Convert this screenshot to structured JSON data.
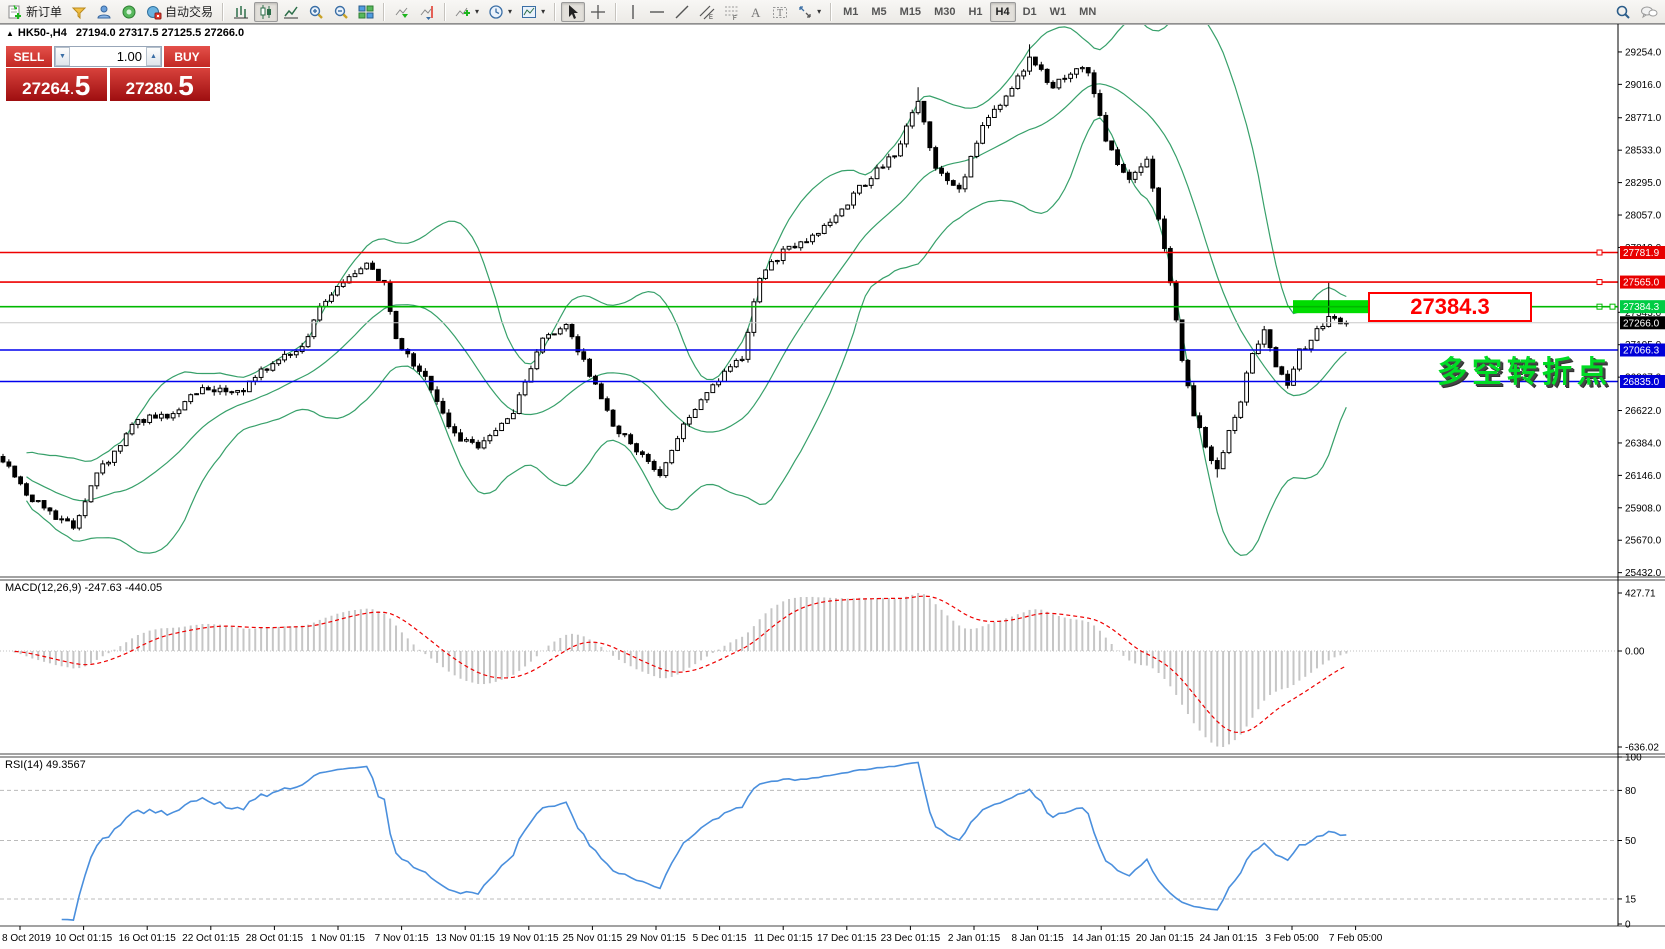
{
  "toolbar": {
    "new_order": "新订单",
    "autotrading": "自动交易",
    "timeframes": [
      "M1",
      "M5",
      "M15",
      "M30",
      "H1",
      "H4",
      "D1",
      "W1",
      "MN"
    ],
    "active_timeframe": "H4"
  },
  "chart_header": {
    "collapse_marker": "▲",
    "symbol_period": "HK50-,H4",
    "ohlc": "27194.0 27317.5 27125.5 27266.0"
  },
  "trade_panel": {
    "sell_label": "SELL",
    "buy_label": "BUY",
    "volume": "1.00",
    "spin_down": "▼",
    "spin_up": "▲",
    "sell_int": "27264",
    "buy_int": "27280",
    "dot": ".",
    "sell_frac": "5",
    "buy_frac": "5"
  },
  "annotations": {
    "level_label": "27384.3",
    "chinese_note": "多空转折点"
  },
  "chart_data": {
    "type": "candlestick",
    "symbol": "HK50-",
    "timeframe": "H4",
    "ohlc_current": {
      "open": 27194.0,
      "high": 27317.5,
      "low": 27125.5,
      "close": 27266.0
    },
    "main": {
      "candles_count": 230,
      "price_anchors": [
        [
          0,
          26250
        ],
        [
          4,
          26000
        ],
        [
          9,
          25850
        ],
        [
          12,
          25780
        ],
        [
          16,
          26150
        ],
        [
          23,
          26550
        ],
        [
          29,
          26600
        ],
        [
          34,
          26800
        ],
        [
          40,
          26750
        ],
        [
          44,
          26900
        ],
        [
          51,
          27100
        ],
        [
          55,
          27450
        ],
        [
          59,
          27600
        ],
        [
          62,
          27700
        ],
        [
          65,
          27550
        ],
        [
          67,
          27150
        ],
        [
          72,
          26850
        ],
        [
          77,
          26450
        ],
        [
          81,
          26350
        ],
        [
          87,
          26600
        ],
        [
          92,
          27150
        ],
        [
          96,
          27250
        ],
        [
          100,
          26900
        ],
        [
          104,
          26500
        ],
        [
          109,
          26300
        ],
        [
          112,
          26150
        ],
        [
          116,
          26500
        ],
        [
          122,
          26850
        ],
        [
          126,
          27000
        ],
        [
          129,
          27600
        ],
        [
          133,
          27800
        ],
        [
          138,
          27900
        ],
        [
          143,
          28100
        ],
        [
          148,
          28350
        ],
        [
          152,
          28500
        ],
        [
          156,
          28900
        ],
        [
          159,
          28400
        ],
        [
          163,
          28250
        ],
        [
          167,
          28700
        ],
        [
          172,
          29000
        ],
        [
          175,
          29200
        ],
        [
          179,
          29000
        ],
        [
          183,
          29150
        ],
        [
          185,
          29100
        ],
        [
          188,
          28600
        ],
        [
          192,
          28300
        ],
        [
          195,
          28450
        ],
        [
          198,
          27800
        ],
        [
          201,
          27000
        ],
        [
          203,
          26600
        ],
        [
          205,
          26350
        ],
        [
          207,
          26200
        ],
        [
          209,
          26450
        ],
        [
          211,
          26700
        ],
        [
          213,
          27050
        ],
        [
          215,
          27200
        ],
        [
          217,
          26950
        ],
        [
          219,
          26800
        ],
        [
          221,
          27050
        ],
        [
          223,
          27150
        ],
        [
          225,
          27250
        ],
        [
          226,
          27320
        ],
        [
          227,
          27280
        ],
        [
          228,
          27240
        ],
        [
          229,
          27266
        ]
      ],
      "wick_overrides": {
        "156": [
          28995,
          null
        ],
        "175": [
          29310,
          null
        ],
        "207": [
          null,
          26130
        ],
        "226": [
          27560,
          null
        ]
      },
      "bollinger": {
        "period": 20,
        "deviation": 2,
        "color": "#37a06a"
      },
      "y_ticks": [
        29254.0,
        29016.0,
        28771.0,
        28533.0,
        28295.0,
        28057.0,
        27819.0,
        27343.0,
        27105.0,
        26867.0,
        26622.0,
        26384.0,
        26146.0,
        25908.0,
        25670.0,
        25432.0
      ],
      "hlines": [
        {
          "price": 27781.9,
          "color": "#ee0000",
          "badge_bg": "#e80000",
          "badge_fg": "#ffffff",
          "handle": true
        },
        {
          "price": 27565.0,
          "color": "#ee0000",
          "badge_bg": "#e80000",
          "badge_fg": "#ffffff",
          "handle": true
        },
        {
          "price": 27384.3,
          "color": "#00b800",
          "badge_bg": "#00cc44",
          "badge_fg": "#ffffff",
          "handle": true
        },
        {
          "price": 27066.3,
          "color": "#0000ee",
          "badge_bg": "#0000d8",
          "badge_fg": "#ffffff",
          "handle": false
        },
        {
          "price": 26835.0,
          "color": "#0000ee",
          "badge_bg": "#0000d8",
          "badge_fg": "#ffffff",
          "handle": false
        }
      ],
      "current_price": {
        "price": 27266.0,
        "line_color": "#c8c8c8",
        "badge_bg": "#000000",
        "badge_fg": "#ffffff"
      },
      "highlight_box": {
        "price_center": 27384.3,
        "x_start": 1293,
        "x_end": 1380,
        "height": 13,
        "color": "#00dc00"
      }
    },
    "macd": {
      "label": "MACD(12,26,9)",
      "values_text": "-247.63 -440.05",
      "fast": 12,
      "slow": 26,
      "signal": 9,
      "current_macd": -247.63,
      "current_signal": -440.05,
      "y_ticks": [
        427.71,
        0.0,
        -636.02
      ],
      "hist_color": "#c6c6c6",
      "signal_color": "#ee0000"
    },
    "rsi": {
      "label": "RSI(14)",
      "value_text": "49.3567",
      "period": 14,
      "current": 49.3567,
      "y_ticks": [
        100,
        80,
        50,
        15,
        0
      ],
      "dashed_levels": [
        80,
        50,
        15
      ],
      "line_color": "#4a8fdd"
    },
    "x_labels": [
      "8 Oct 2019",
      "10 Oct 01:15",
      "16 Oct 01:15",
      "22 Oct 01:15",
      "28 Oct 01:15",
      "1 Nov 01:15",
      "7 Nov 01:15",
      "13 Nov 01:15",
      "19 Nov 01:15",
      "25 Nov 01:15",
      "29 Nov 01:15",
      "5 Dec 01:15",
      "11 Dec 01:15",
      "17 Dec 01:15",
      "23 Dec 01:15",
      "2 Jan 01:15",
      "8 Jan 01:15",
      "14 Jan 01:15",
      "20 Jan 01:15",
      "24 Jan 01:15",
      "3 Feb 05:00",
      "7 Feb 05:00"
    ]
  }
}
